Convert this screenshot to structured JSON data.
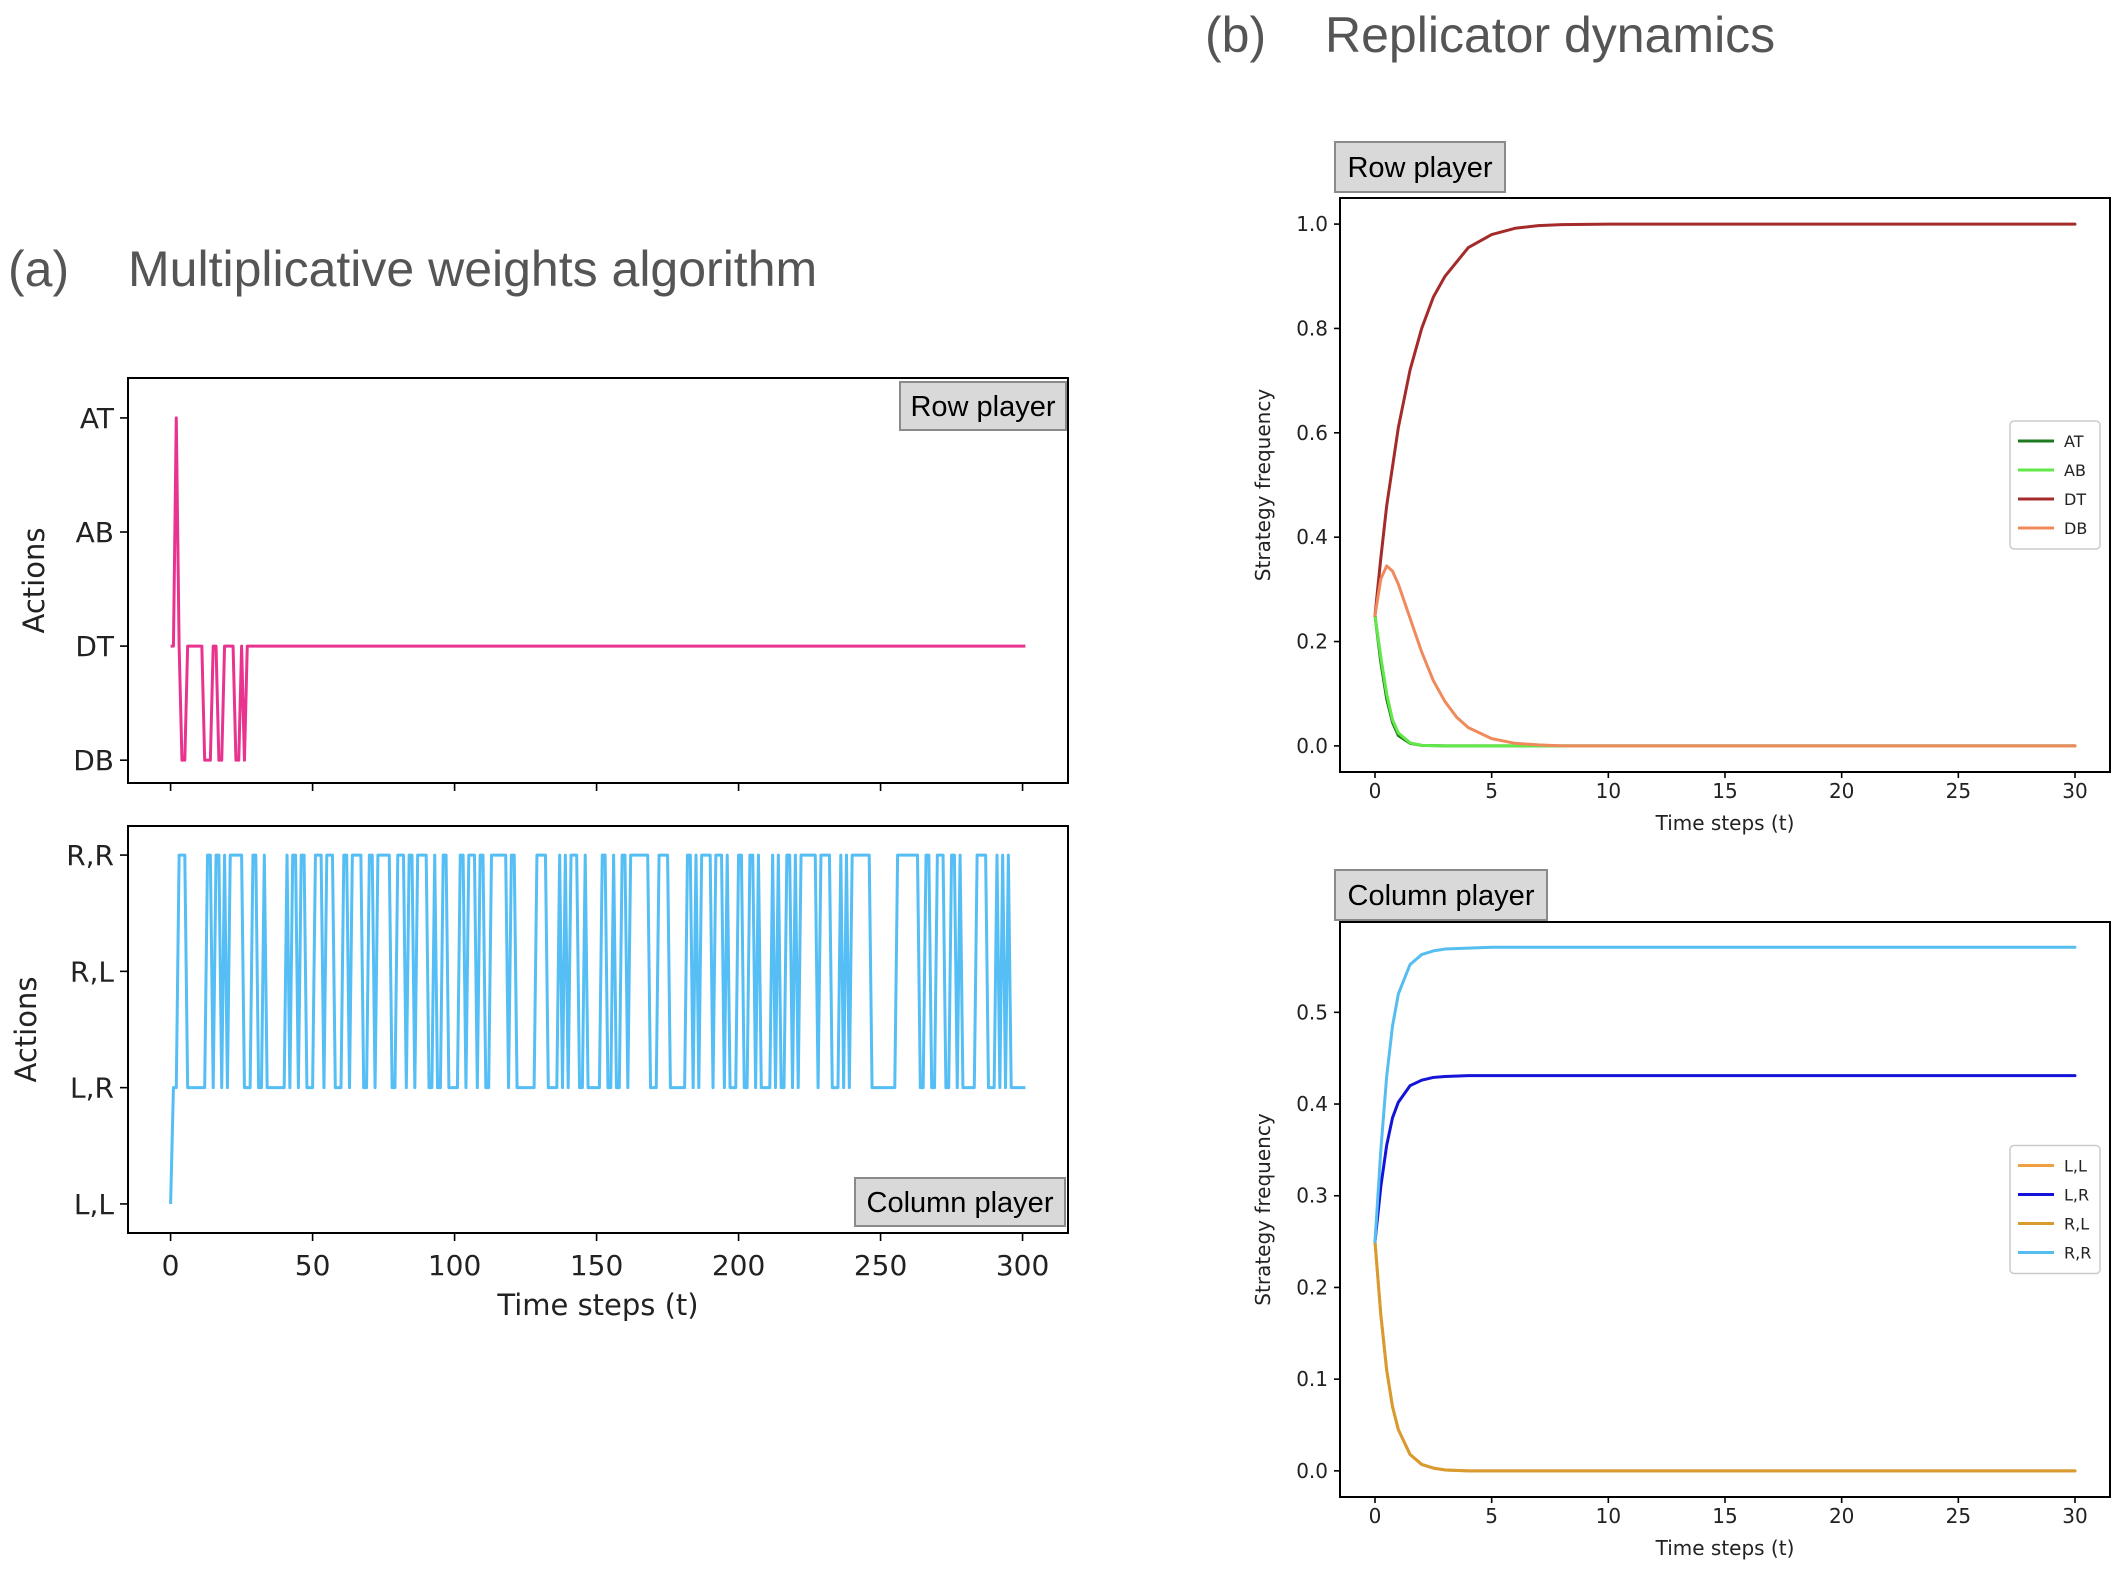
{
  "headings": {
    "a": {
      "letter": "(a)",
      "title": "Multiplicative weights algorithm"
    },
    "b": {
      "letter": "(b)",
      "title": "Replicator dynamics"
    }
  },
  "chart_data": [
    {
      "id": "mwa-row",
      "type": "line",
      "panel": "(a)",
      "tag": "Row player",
      "ylabel": "Actions",
      "xlabel": "",
      "xlim": [
        -15,
        316
      ],
      "ylim": [
        -0.2,
        3.35
      ],
      "xticks": [
        0,
        50,
        100,
        150,
        200,
        250,
        300
      ],
      "show_xtick_labels": false,
      "yticks": [
        {
          "v": 3,
          "label": "AT"
        },
        {
          "v": 2,
          "label": "AB"
        },
        {
          "v": 1,
          "label": "DT"
        },
        {
          "v": 0,
          "label": "DB"
        }
      ],
      "series": [
        {
          "name": "action",
          "color": "#e8348f",
          "width": 3,
          "x": [
            0,
            1,
            2,
            3,
            4,
            5,
            6,
            7,
            8,
            9,
            10,
            11,
            12,
            13,
            14,
            15,
            16,
            17,
            18,
            19,
            20,
            21,
            22,
            23,
            24,
            25,
            26,
            27,
            28,
            301
          ],
          "y": [
            1,
            1,
            3,
            1,
            0,
            0,
            1,
            1,
            1,
            1,
            1,
            1,
            0,
            0,
            0,
            1,
            1,
            0,
            0,
            1,
            1,
            1,
            1,
            0,
            0,
            1,
            0,
            1,
            1,
            1
          ]
        }
      ]
    },
    {
      "id": "mwa-col",
      "type": "line",
      "panel": "(a)",
      "tag": "Column player",
      "ylabel": "Actions",
      "xlabel": "Time steps (t)",
      "xlim": [
        -15,
        316
      ],
      "ylim": [
        -0.25,
        3.25
      ],
      "xticks": [
        0,
        50,
        100,
        150,
        200,
        250,
        300
      ],
      "show_xtick_labels": true,
      "yticks": [
        {
          "v": 3,
          "label": "R,R"
        },
        {
          "v": 2,
          "label": "R,L"
        },
        {
          "v": 1,
          "label": "L,R"
        },
        {
          "v": 0,
          "label": "L,L"
        }
      ],
      "series": [
        {
          "name": "action",
          "color": "#55bef5",
          "width": 3,
          "seed": 7,
          "switch_prob": 0.42,
          "t_max": 301,
          "start": [
            [
              0,
              0
            ],
            [
              1,
              1
            ],
            [
              2,
              1
            ],
            [
              3,
              3
            ],
            [
              4,
              3
            ]
          ]
        }
      ]
    },
    {
      "id": "rd-row",
      "type": "line",
      "panel": "(b)",
      "tag": "Row player",
      "ylabel": "Strategy frequency",
      "xlabel": "Time steps (t)",
      "xlim": [
        -1.5,
        31.5
      ],
      "ylim": [
        -0.05,
        1.05
      ],
      "xticks": [
        0,
        5,
        10,
        15,
        20,
        25,
        30
      ],
      "yticks": [
        0.0,
        0.2,
        0.4,
        0.6,
        0.8,
        1.0
      ],
      "ytick_decimals": 1,
      "legend_position": "center-right",
      "series": [
        {
          "name": "AT",
          "color": "#1e7a1e",
          "x": [
            0,
            0.25,
            0.5,
            0.75,
            1,
            1.5,
            2,
            3,
            4,
            5,
            30
          ],
          "y": [
            0.25,
            0.16,
            0.09,
            0.045,
            0.02,
            0.005,
            0.001,
            0,
            0,
            0,
            0
          ]
        },
        {
          "name": "AB",
          "color": "#63e84a",
          "x": [
            0,
            0.25,
            0.5,
            0.75,
            1,
            1.5,
            2,
            3,
            4,
            5,
            30
          ],
          "y": [
            0.25,
            0.17,
            0.1,
            0.05,
            0.025,
            0.006,
            0.001,
            0,
            0,
            0,
            0
          ]
        },
        {
          "name": "DT",
          "color": "#a52a2a",
          "x": [
            0,
            0.25,
            0.5,
            1,
            1.5,
            2,
            2.5,
            3,
            4,
            5,
            6,
            7,
            8,
            10,
            30
          ],
          "y": [
            0.25,
            0.36,
            0.46,
            0.61,
            0.72,
            0.8,
            0.86,
            0.9,
            0.955,
            0.98,
            0.992,
            0.997,
            0.999,
            1,
            1
          ]
        },
        {
          "name": "DB",
          "color": "#f08a5c",
          "x": [
            0,
            0.25,
            0.5,
            0.75,
            1,
            1.5,
            2,
            2.5,
            3,
            3.5,
            4,
            5,
            6,
            7,
            8,
            30
          ],
          "y": [
            0.25,
            0.32,
            0.345,
            0.335,
            0.31,
            0.245,
            0.18,
            0.125,
            0.085,
            0.055,
            0.035,
            0.014,
            0.005,
            0.002,
            0,
            0
          ]
        }
      ]
    },
    {
      "id": "rd-col",
      "type": "line",
      "panel": "(b)",
      "tag": "Column player",
      "ylabel": "Strategy frequency",
      "xlabel": "Time steps (t)",
      "xlim": [
        -1.5,
        31.5
      ],
      "ylim": [
        -0.0285,
        0.5985
      ],
      "xticks": [
        0,
        5,
        10,
        15,
        20,
        25,
        30
      ],
      "yticks": [
        0.0,
        0.1,
        0.2,
        0.3,
        0.4,
        0.5
      ],
      "ytick_decimals": 1,
      "legend_position": "center-right",
      "series": [
        {
          "name": "L,L",
          "color": "#f0a040",
          "x": [
            0,
            0.25,
            0.5,
            0.75,
            1,
            1.5,
            2,
            2.5,
            3,
            4,
            30
          ],
          "y": [
            0.25,
            0.17,
            0.11,
            0.07,
            0.045,
            0.018,
            0.007,
            0.003,
            0.001,
            0,
            0
          ]
        },
        {
          "name": "L,R",
          "color": "#1414d8",
          "x": [
            0,
            0.25,
            0.5,
            0.75,
            1,
            1.5,
            2,
            2.5,
            3,
            4,
            5,
            30
          ],
          "y": [
            0.25,
            0.31,
            0.355,
            0.385,
            0.402,
            0.42,
            0.426,
            0.429,
            0.43,
            0.431,
            0.431,
            0.431
          ]
        },
        {
          "name": "R,L",
          "color": "#d99a30",
          "x": [
            0,
            0.25,
            0.5,
            0.75,
            1,
            1.5,
            2,
            2.5,
            3,
            4,
            30
          ],
          "y": [
            0.25,
            0.17,
            0.11,
            0.07,
            0.045,
            0.018,
            0.007,
            0.003,
            0.001,
            0,
            0
          ]
        },
        {
          "name": "R,R",
          "color": "#56bdf0",
          "x": [
            0,
            0.25,
            0.5,
            0.75,
            1,
            1.5,
            2,
            2.5,
            3,
            4,
            5,
            30
          ],
          "y": [
            0.25,
            0.35,
            0.43,
            0.485,
            0.52,
            0.552,
            0.563,
            0.567,
            0.569,
            0.57,
            0.571,
            0.571
          ]
        }
      ]
    }
  ]
}
